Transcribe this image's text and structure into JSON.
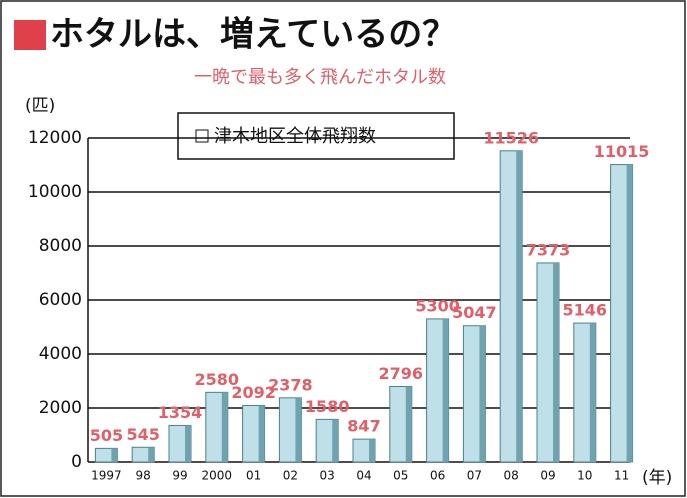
{
  "chart_data": {
    "type": "bar",
    "title": "ホタルは、増えているの？",
    "subtitle": "一晩で最も多く飛んだホタル数",
    "y_label": "(匹)",
    "x_label": "(年)",
    "legend": "津木地区全体飛翔数",
    "categories": [
      "1997",
      "98",
      "99",
      "2000",
      "01",
      "02",
      "03",
      "04",
      "05",
      "06",
      "07",
      "08",
      "09",
      "10",
      "11"
    ],
    "values": [
      505,
      545,
      1354,
      2580,
      2092,
      2378,
      1580,
      847,
      2796,
      5300,
      5047,
      11526,
      7373,
      5146,
      11015
    ],
    "color": "#bfe0e8",
    "label_color": "#e0606a",
    "ylim": [
      0,
      12000
    ],
    "yticks": [
      0,
      2000,
      4000,
      6000,
      8000,
      10000,
      12000
    ],
    "grid": true
  }
}
